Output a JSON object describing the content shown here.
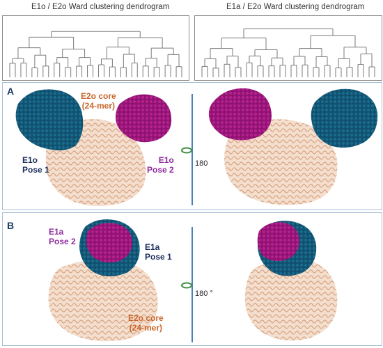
{
  "dendrograms": {
    "left_title": "E1o / E2o Ward clustering dendrogram",
    "right_title": "E1a / E2o Ward clustering dendrogram"
  },
  "panel_a": {
    "letter": "A",
    "e2o_core_line1": "E2o core",
    "e2o_core_line2": "(24-mer)",
    "pose1_line1": "E1o",
    "pose1_line2": "Pose 1",
    "pose2_line1": "E1o",
    "pose2_line2": "Pose 2",
    "rotation": "180"
  },
  "panel_b": {
    "letter": "B",
    "pose2_line1": "E1a",
    "pose2_line2": "Pose 2",
    "pose1_line1": "E1a",
    "pose1_line2": "Pose 1",
    "rotation": "180 °",
    "e2o_core_line1": "E2o core",
    "e2o_core_line2": "(24-mer)"
  },
  "colors": {
    "pose1_navy": "#10506e",
    "pose2_magenta": "#a0177e",
    "e2o_peach": "#e7b89a"
  }
}
